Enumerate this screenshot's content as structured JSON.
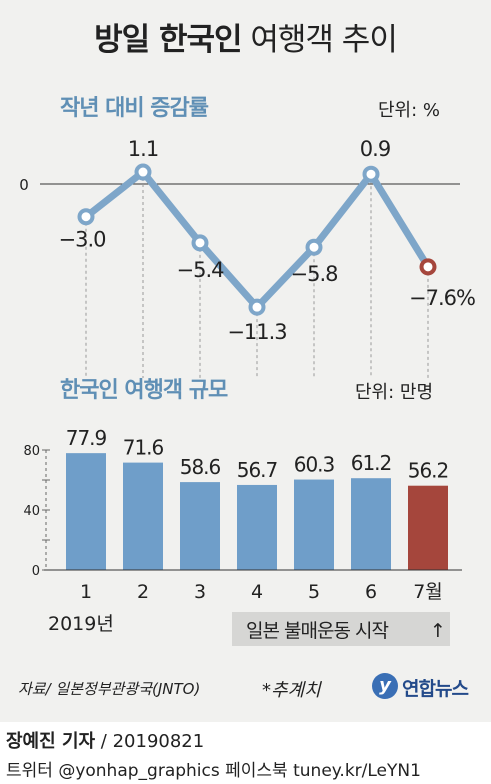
{
  "header": {
    "title_bold": "방일 한국인",
    "title_light": "여행객 추이"
  },
  "chart_data": [
    {
      "type": "line",
      "title": "작년 대비 증감률",
      "unit_label": "단위: %",
      "categories": [
        "1",
        "2",
        "3",
        "4",
        "5",
        "6",
        "7월"
      ],
      "values": [
        -3.0,
        1.1,
        -5.4,
        -11.3,
        -5.8,
        0.9,
        -7.6
      ],
      "value_labels": [
        "−3.0",
        "1.1",
        "−5.4",
        "−11.3",
        "−5.8",
        "0.9",
        "−7.6%"
      ],
      "zero_label": "0",
      "highlight_index": 6,
      "colors": {
        "line": "#7ea6c9",
        "marker_fill": "#ffffff",
        "highlight": "#a5463c"
      }
    },
    {
      "type": "bar",
      "title": "한국인 여행객 규모",
      "unit_label": "단위: 만명",
      "categories": [
        "1",
        "2",
        "3",
        "4",
        "5",
        "6",
        "7월"
      ],
      "values": [
        77.9,
        71.6,
        58.6,
        56.7,
        60.3,
        61.2,
        56.2
      ],
      "value_labels": [
        "77.9",
        "71.6",
        "58.6",
        "56.7",
        "60.3",
        "61.2",
        "56.2"
      ],
      "y_ticks": [
        0,
        40,
        80
      ],
      "y_tick_labels": [
        "0",
        "40",
        "80"
      ],
      "ylim": [
        0,
        80
      ],
      "highlight_index": 6,
      "colors": {
        "bar": "#6f9ec9",
        "highlight": "#a5463c"
      }
    }
  ],
  "year_label": "2019년",
  "boycott_label": "일본 불매운동 시작",
  "boycott_arrow": "↑",
  "footer": {
    "source": "자료/ 일본정부관광국(JNTO)",
    "note": "*추계치",
    "logo_text": "연합뉴스",
    "reporter_name": "장예진 기자",
    "reporter_date": " / 20190821",
    "twitter": "트위터 @yonhap_graphics  페이스북 tuney.kr/LeYN1"
  }
}
